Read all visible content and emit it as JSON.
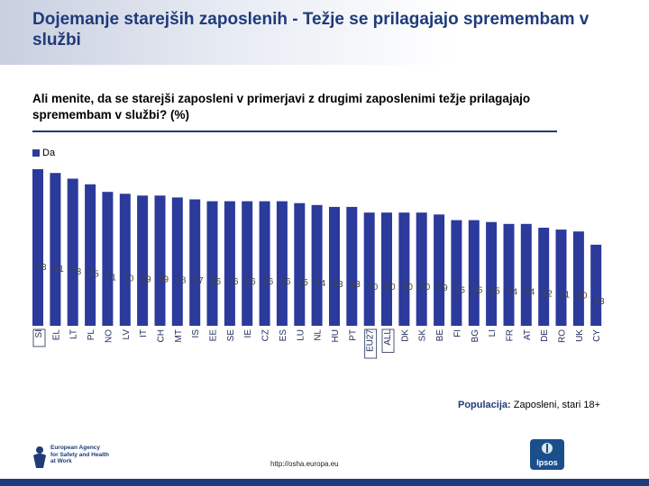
{
  "header": {
    "title": "Dojemanje starejših zaposlenih - Težje se prilagajajo spremembam v službi",
    "question": "Ali menite, da se starejši zaposleni v primerjavi z drugimi zaposlenimi težje prilagajajo spremembam v službi? (%)"
  },
  "chart_data": {
    "type": "bar",
    "legend": [
      "Da"
    ],
    "categories": [
      "SI",
      "EL",
      "LT",
      "PL",
      "NO",
      "LV",
      "IT",
      "CH",
      "MT",
      "IS",
      "EE",
      "SE",
      "IE",
      "CZ",
      "ES",
      "LU",
      "NL",
      "HU",
      "PT",
      "EU27",
      "ALL",
      "DK",
      "SK",
      "BE",
      "FI",
      "BG",
      "LI",
      "FR",
      "AT",
      "DE",
      "RO",
      "UK",
      "CY"
    ],
    "series": [
      {
        "name": "Da",
        "values": [
          83,
          81,
          78,
          75,
          71,
          70,
          69,
          69,
          68,
          67,
          66,
          66,
          66,
          66,
          66,
          65,
          64,
          63,
          63,
          60,
          60,
          60,
          60,
          59,
          56,
          56,
          55,
          54,
          54,
          52,
          51,
          50,
          43
        ]
      }
    ],
    "highlight": [
      "SI",
      "EU27",
      "ALL"
    ],
    "ylim": [
      0,
      100
    ],
    "bar_color": "#2b3a9b"
  },
  "footer": {
    "population_label": "Populacija:",
    "population_value": "Zaposleni, stari 18+",
    "url": "http://osha.europa.eu",
    "osha_line1": "European Agency",
    "osha_line2": "for Safety and Health",
    "osha_line3": "at Work",
    "ipsos_label": "Ipsos"
  }
}
